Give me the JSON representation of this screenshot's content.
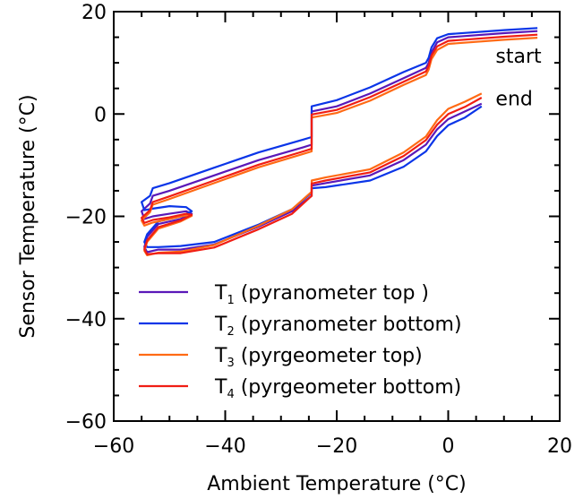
{
  "chart_data": {
    "type": "line",
    "title": "",
    "xlabel": "Ambient Temperature (°C)",
    "ylabel": "Sensor Temperature (°C)",
    "xlim": [
      -60,
      20
    ],
    "ylim": [
      -60,
      20
    ],
    "xticks": [
      -60,
      -40,
      -20,
      0,
      20
    ],
    "yticks": [
      -60,
      -40,
      -20,
      0,
      20
    ],
    "legend_position": "lower-right",
    "annotations": [
      {
        "text": "start",
        "x": 8.5,
        "y": 11.4
      },
      {
        "text": "end",
        "x": 8.5,
        "y": 3.1
      }
    ],
    "series": [
      {
        "name": "T1 (pyranometer top )",
        "legend_main": "T",
        "legend_sub": "1",
        "legend_rest": " (pyranometer top )",
        "color": "#5a18b8",
        "x": [
          16,
          10,
          0,
          -2,
          -3,
          -3.5,
          -4,
          -8,
          -14,
          -20,
          -24.5,
          -24.5,
          -26,
          -34,
          -42,
          -50,
          -53,
          -53.5,
          -55,
          -54.5,
          -53,
          -50,
          -47,
          -46,
          -48,
          -52,
          -54,
          -54.5,
          -54,
          -52,
          -48,
          -42,
          -34,
          -28,
          -24.5,
          -24.5,
          -22,
          -14,
          -8,
          -4,
          -2,
          0,
          3,
          6
        ],
        "y": [
          16.2,
          15.8,
          15,
          14,
          12,
          10,
          9,
          7,
          4,
          1.5,
          0.5,
          -6,
          -6.5,
          -9,
          -12,
          -15,
          -16,
          -17.5,
          -19,
          -20.5,
          -20,
          -19.5,
          -19,
          -19.5,
          -20.5,
          -21.5,
          -24,
          -26,
          -27,
          -26.5,
          -26.5,
          -25.5,
          -22,
          -19,
          -16,
          -14,
          -13.5,
          -12,
          -9,
          -6,
          -3,
          -1,
          0.5,
          2
        ]
      },
      {
        "name": "T2 (pyranometer bottom)",
        "legend_main": "T",
        "legend_sub": "2",
        "legend_rest": " (pyranometer bottom)",
        "color": "#0a35e8",
        "x": [
          16,
          10,
          0,
          -2,
          -3,
          -3.5,
          -4,
          -8,
          -14,
          -20,
          -24.5,
          -24.5,
          -26,
          -34,
          -42,
          -50,
          -53,
          -53.5,
          -55,
          -54.5,
          -53,
          -50,
          -47,
          -46,
          -48,
          -52,
          -54,
          -54.5,
          -54,
          -52,
          -48,
          -42,
          -34,
          -28,
          -24.5,
          -24.5,
          -22,
          -14,
          -8,
          -4,
          -2,
          0,
          3,
          6
        ],
        "y": [
          16.8,
          16.4,
          15.6,
          14.8,
          13,
          11,
          10,
          8.2,
          5.2,
          2.7,
          1.5,
          -4.5,
          -5,
          -7.5,
          -10.5,
          -13.5,
          -14.5,
          -16,
          -17.2,
          -18.8,
          -18.5,
          -18,
          -18.2,
          -19,
          -20,
          -21,
          -23.5,
          -25,
          -26,
          -26,
          -25.8,
          -25,
          -21.6,
          -18.6,
          -15.4,
          -14.5,
          -14.3,
          -13,
          -10.3,
          -7.3,
          -4.3,
          -2.2,
          -0.7,
          1.5
        ]
      },
      {
        "name": "T3 (pyrgeometer top)",
        "legend_main": "T",
        "legend_sub": "3",
        "legend_rest": " (pyrgeometer top)",
        "color": "#ff6a14",
        "x": [
          16,
          10,
          0,
          -2,
          -3,
          -3.5,
          -4,
          -8,
          -14,
          -20,
          -24.5,
          -24.5,
          -26,
          -34,
          -42,
          -50,
          -53,
          -53.5,
          -55,
          -54.5,
          -53,
          -50,
          -47,
          -46,
          -48,
          -52,
          -54,
          -54.5,
          -54,
          -52,
          -48,
          -42,
          -34,
          -28,
          -24.5,
          -24.5,
          -22,
          -14,
          -8,
          -4,
          -2,
          0,
          3,
          6
        ],
        "y": [
          14.9,
          14.5,
          13.7,
          12.5,
          10.7,
          8.7,
          7.6,
          5.7,
          2.6,
          0.2,
          -0.7,
          -7.3,
          -7.8,
          -10.4,
          -13.5,
          -16.6,
          -17.7,
          -19.2,
          -20.8,
          -21.8,
          -21.2,
          -20.5,
          -19.8,
          -19.9,
          -21,
          -22.4,
          -25,
          -26.7,
          -27.6,
          -27.1,
          -26.9,
          -25.6,
          -21.8,
          -18.6,
          -15.2,
          -13,
          -12.4,
          -10.8,
          -7.5,
          -4.4,
          -1.2,
          1,
          2.4,
          4
        ]
      },
      {
        "name": "T4 (pyrgeometer bottom)",
        "legend_main": "T",
        "legend_sub": "4",
        "legend_rest": " (pyrgeometer bottom)",
        "color": "#f01e14",
        "x": [
          16,
          10,
          0,
          -2,
          -3,
          -3.5,
          -4,
          -8,
          -14,
          -20,
          -24.5,
          -24.5,
          -26,
          -34,
          -42,
          -50,
          -53,
          -53.5,
          -55,
          -54.5,
          -53,
          -50,
          -47,
          -46,
          -48,
          -52,
          -54,
          -54.5,
          -54,
          -52,
          -48,
          -42,
          -34,
          -28,
          -24.5,
          -24.5,
          -22,
          -14,
          -8,
          -4,
          -2,
          0,
          3,
          6
        ],
        "y": [
          15.5,
          15.1,
          14.3,
          13.2,
          11.4,
          9.4,
          8.3,
          6.3,
          3.3,
          0.8,
          -0.1,
          -6.8,
          -7.3,
          -9.9,
          -13,
          -16.1,
          -17.2,
          -18.8,
          -20.3,
          -21.3,
          -20.7,
          -20.2,
          -19.5,
          -19.7,
          -20.8,
          -22.1,
          -24.7,
          -26.4,
          -27.4,
          -27.2,
          -27.2,
          -26.1,
          -22.5,
          -19.5,
          -16,
          -13.6,
          -13,
          -11.4,
          -8.2,
          -5.1,
          -2.1,
          0,
          1.4,
          3.2
        ]
      }
    ]
  }
}
